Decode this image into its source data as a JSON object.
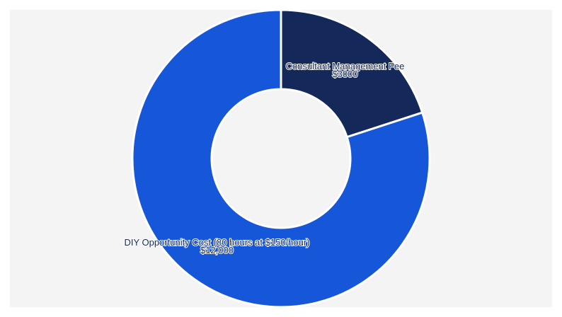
{
  "chart_data": {
    "type": "donut",
    "categories": [
      "Consultant Management Fee",
      "DIY Opportunity Cost (80 hours at $150/hour)"
    ],
    "values": [
      3000,
      12000
    ],
    "value_labels": [
      "$3000",
      "$12,000"
    ],
    "colors": [
      "#14285a",
      "#1656d8"
    ]
  }
}
